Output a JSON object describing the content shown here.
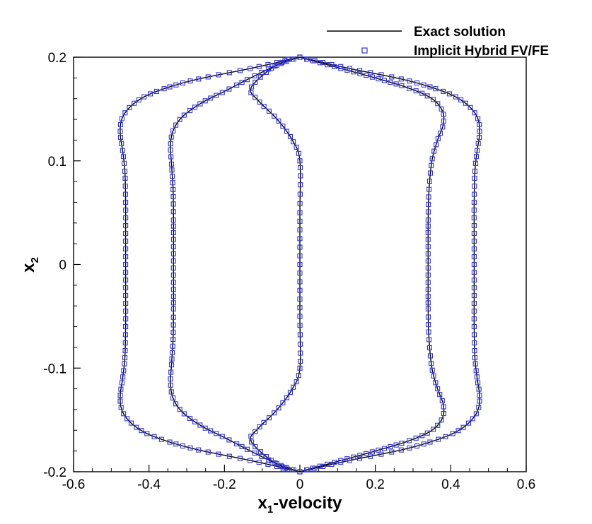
{
  "chart_data": {
    "type": "line",
    "xlabel": "x1-velocity",
    "xlabel_main": "x",
    "xlabel_sub": "1",
    "xlabel_rest": "-velocity",
    "ylabel": "x2",
    "ylabel_main": "x",
    "ylabel_sub": "2",
    "xlim": [
      -0.6,
      0.6
    ],
    "ylim": [
      -0.2,
      0.2
    ],
    "xticks": [
      "-0.6",
      "-0.4",
      "-0.2",
      "0",
      "0.2",
      "0.4",
      "0.6"
    ],
    "yticks": [
      "-0.2",
      "-0.1",
      "0",
      "0.1",
      "0.2"
    ],
    "grid": false,
    "legend_position": "top-right",
    "colors": {
      "exact": "#000000",
      "markers": "#3333cc"
    },
    "series": [
      {
        "name": "Exact solution",
        "style": "line",
        "curves": [
          {
            "id": "outer-left",
            "points": [
              [
                0,
                0.2
              ],
              [
                -0.12,
                0.19
              ],
              [
                -0.28,
                0.178
              ],
              [
                -0.38,
                0.167
              ],
              [
                -0.43,
                0.158
              ],
              [
                -0.46,
                0.148
              ],
              [
                -0.474,
                0.138
              ],
              [
                -0.476,
                0.125
              ],
              [
                -0.47,
                0.11
              ],
              [
                -0.464,
                0.09
              ],
              [
                -0.462,
                0.06
              ],
              [
                -0.462,
                0.03
              ],
              [
                -0.462,
                0
              ],
              [
                -0.462,
                -0.03
              ],
              [
                -0.462,
                -0.06
              ],
              [
                -0.464,
                -0.09
              ],
              [
                -0.47,
                -0.11
              ],
              [
                -0.476,
                -0.125
              ],
              [
                -0.474,
                -0.138
              ],
              [
                -0.46,
                -0.148
              ],
              [
                -0.43,
                -0.158
              ],
              [
                -0.38,
                -0.167
              ],
              [
                -0.28,
                -0.178
              ],
              [
                -0.12,
                -0.19
              ],
              [
                0,
                -0.2
              ]
            ]
          },
          {
            "id": "outer-right",
            "points": [
              [
                0,
                0.2
              ],
              [
                0.12,
                0.19
              ],
              [
                0.28,
                0.178
              ],
              [
                0.38,
                0.167
              ],
              [
                0.43,
                0.158
              ],
              [
                0.46,
                0.148
              ],
              [
                0.474,
                0.138
              ],
              [
                0.476,
                0.125
              ],
              [
                0.47,
                0.11
              ],
              [
                0.464,
                0.09
              ],
              [
                0.462,
                0.06
              ],
              [
                0.462,
                0.03
              ],
              [
                0.462,
                0
              ],
              [
                0.462,
                -0.03
              ],
              [
                0.462,
                -0.06
              ],
              [
                0.464,
                -0.09
              ],
              [
                0.47,
                -0.11
              ],
              [
                0.476,
                -0.125
              ],
              [
                0.474,
                -0.138
              ],
              [
                0.46,
                -0.148
              ],
              [
                0.43,
                -0.158
              ],
              [
                0.38,
                -0.167
              ],
              [
                0.28,
                -0.178
              ],
              [
                0.12,
                -0.19
              ],
              [
                0,
                -0.2
              ]
            ]
          },
          {
            "id": "inner-left",
            "points": [
              [
                0,
                0.2
              ],
              [
                -0.05,
                0.194
              ],
              [
                -0.12,
                0.182
              ],
              [
                -0.2,
                0.167
              ],
              [
                -0.26,
                0.156
              ],
              [
                -0.31,
                0.143
              ],
              [
                -0.335,
                0.13
              ],
              [
                -0.343,
                0.115
              ],
              [
                -0.34,
                0.095
              ],
              [
                -0.336,
                0.07
              ],
              [
                -0.335,
                0.04
              ],
              [
                -0.335,
                0
              ],
              [
                -0.335,
                -0.04
              ],
              [
                -0.336,
                -0.07
              ],
              [
                -0.34,
                -0.095
              ],
              [
                -0.343,
                -0.115
              ],
              [
                -0.335,
                -0.13
              ],
              [
                -0.31,
                -0.143
              ],
              [
                -0.26,
                -0.156
              ],
              [
                -0.2,
                -0.167
              ],
              [
                -0.12,
                -0.182
              ],
              [
                -0.05,
                -0.194
              ],
              [
                0,
                -0.2
              ]
            ]
          },
          {
            "id": "inner-right",
            "points": [
              [
                0,
                0.2
              ],
              [
                0.1,
                0.19
              ],
              [
                0.2,
                0.18
              ],
              [
                0.29,
                0.17
              ],
              [
                0.35,
                0.16
              ],
              [
                0.378,
                0.148
              ],
              [
                0.38,
                0.135
              ],
              [
                0.365,
                0.12
              ],
              [
                0.35,
                0.1
              ],
              [
                0.342,
                0.07
              ],
              [
                0.34,
                0.04
              ],
              [
                0.34,
                0
              ],
              [
                0.34,
                -0.04
              ],
              [
                0.342,
                -0.07
              ],
              [
                0.35,
                -0.1
              ],
              [
                0.365,
                -0.12
              ],
              [
                0.38,
                -0.135
              ],
              [
                0.378,
                -0.148
              ],
              [
                0.35,
                -0.16
              ],
              [
                0.29,
                -0.17
              ],
              [
                0.2,
                -0.18
              ],
              [
                0.1,
                -0.19
              ],
              [
                0,
                -0.2
              ]
            ]
          },
          {
            "id": "cross-top",
            "points": [
              [
                -0.03,
                0.198
              ],
              [
                -0.08,
                0.188
              ],
              [
                -0.13,
                0.17
              ],
              [
                -0.11,
                0.158
              ],
              [
                -0.06,
                0.14
              ],
              [
                -0.02,
                0.12
              ],
              [
                0,
                0.1
              ],
              [
                0,
                0.05
              ],
              [
                0,
                0
              ],
              [
                0,
                -0.05
              ],
              [
                0,
                -0.1
              ],
              [
                -0.02,
                -0.12
              ],
              [
                -0.06,
                -0.14
              ],
              [
                -0.11,
                -0.158
              ],
              [
                -0.13,
                -0.17
              ],
              [
                -0.08,
                -0.188
              ],
              [
                -0.03,
                -0.198
              ]
            ]
          }
        ]
      },
      {
        "name": "Implicit Hybrid FV/FE",
        "style": "markers",
        "marker": "square"
      }
    ]
  },
  "legend": {
    "exact_label": "Exact solution",
    "hybrid_label": "Implicit Hybrid FV/FE"
  }
}
